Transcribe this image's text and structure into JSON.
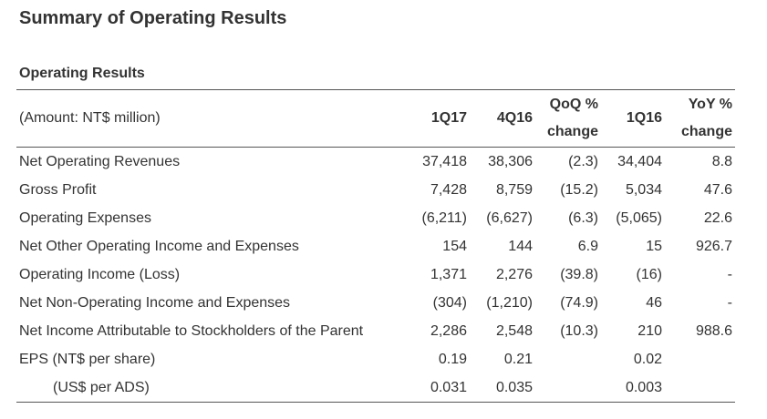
{
  "page": {
    "title": "Summary of Operating Results",
    "section_title": "Operating Results"
  },
  "table": {
    "unit_label": "(Amount: NT$ million)",
    "headers": [
      "1Q17",
      "4Q16",
      "QoQ % change",
      "1Q16",
      "YoY % change"
    ],
    "rows": [
      {
        "label": "Net Operating Revenues",
        "values": [
          "37,418",
          "38,306",
          "(2.3)",
          "34,404",
          "8.8"
        ]
      },
      {
        "label": "Gross Profit",
        "values": [
          "7,428",
          "8,759",
          "(15.2)",
          "5,034",
          "47.6"
        ]
      },
      {
        "label": "Operating Expenses",
        "values": [
          "(6,211)",
          "(6,627)",
          "(6.3)",
          "(5,065)",
          "22.6"
        ]
      },
      {
        "label": "Net Other Operating Income and Expenses",
        "values": [
          "154",
          "144",
          "6.9",
          "15",
          "926.7"
        ]
      },
      {
        "label": "Operating Income (Loss)",
        "values": [
          "1,371",
          "2,276",
          "(39.8)",
          "(16)",
          "-"
        ]
      },
      {
        "label": "Net Non-Operating Income and Expenses",
        "values": [
          "(304)",
          "(1,210)",
          "(74.9)",
          "46",
          "-"
        ]
      },
      {
        "label": "Net Income Attributable to Stockholders of the Parent",
        "values": [
          "2,286",
          "2,548",
          "(10.3)",
          "210",
          "988.6"
        ]
      },
      {
        "label": "EPS (NT$ per share)",
        "values": [
          "0.19",
          "0.21",
          "",
          "0.02",
          ""
        ]
      },
      {
        "label": "(US$ per ADS)",
        "values": [
          "0.031",
          "0.035",
          "",
          "0.003",
          ""
        ]
      }
    ]
  }
}
